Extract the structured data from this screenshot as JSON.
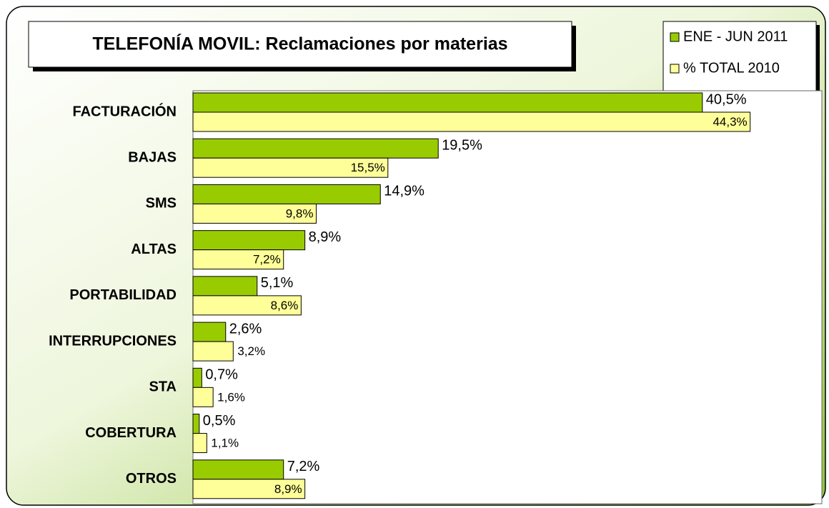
{
  "chart_data": {
    "type": "bar",
    "orientation": "horizontal",
    "title": "TELEFONÍA MOVIL: Reclamaciones por materias",
    "categories": [
      "FACTURACIÓN",
      "BAJAS",
      "SMS",
      "ALTAS",
      "PORTABILIDAD",
      "INTERRUPCIONES",
      "STA",
      "COBERTURA",
      "OTROS"
    ],
    "series": [
      {
        "name": "ENE - JUN 2011",
        "color": "#99cc00",
        "values": [
          40.5,
          19.5,
          14.9,
          8.9,
          5.1,
          2.6,
          0.7,
          0.5,
          7.2
        ],
        "value_labels": [
          "40,5%",
          "19,5%",
          "14,9%",
          "8,9%",
          "5,1%",
          "2,6%",
          "0,7%",
          "0,5%",
          "7,2%"
        ]
      },
      {
        "name": "% TOTAL 2010",
        "color": "#ffff99",
        "values": [
          44.3,
          15.5,
          9.8,
          7.2,
          8.6,
          3.2,
          1.6,
          1.1,
          8.9
        ],
        "value_labels": [
          "44,3%",
          "15,5%",
          "9,8%",
          "7,2%",
          "8,6%",
          "3,2%",
          "1,6%",
          "1,1%",
          "8,9%"
        ]
      }
    ],
    "xlim": [
      0,
      50
    ],
    "legend": "top-right"
  }
}
